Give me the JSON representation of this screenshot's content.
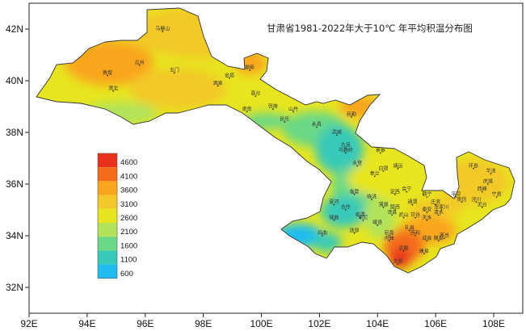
{
  "title": "甘肃省1981-2022年大于10℃ 年平均积温分布图",
  "axes": {
    "x_ticks": [
      "92E",
      "94E",
      "96E",
      "98E",
      "100E",
      "102E",
      "104E",
      "106E",
      "108E"
    ],
    "x_values": [
      92,
      94,
      96,
      98,
      100,
      102,
      104,
      106,
      108
    ],
    "y_ticks": [
      "42N",
      "40N",
      "38N",
      "36N",
      "34N",
      "32N"
    ],
    "y_values": [
      42,
      40,
      38,
      36,
      34,
      32
    ],
    "x_range": [
      92,
      109
    ],
    "y_range": [
      31,
      43
    ]
  },
  "legend": {
    "entries": [
      {
        "label": "4600",
        "color": "#e8321e"
      },
      {
        "label": "4100",
        "color": "#f46b1a"
      },
      {
        "label": "3600",
        "color": "#f9a61d"
      },
      {
        "label": "3100",
        "color": "#f2c928"
      },
      {
        "label": "2600",
        "color": "#e7e51f"
      },
      {
        "label": "2100",
        "color": "#b2e35b"
      },
      {
        "label": "1600",
        "color": "#6bd885"
      },
      {
        "label": "1100",
        "color": "#39c9b8"
      },
      {
        "label": "600",
        "color": "#1fbdf0"
      }
    ]
  },
  "places": [
    {
      "name": "马鬃山",
      "lon": 96.6,
      "lat": 41.9
    },
    {
      "name": "瓜州",
      "lon": 95.8,
      "lat": 40.6
    },
    {
      "name": "敦煌",
      "lon": 94.7,
      "lat": 40.2
    },
    {
      "name": "玉门",
      "lon": 97.0,
      "lat": 40.3
    },
    {
      "name": "肃北",
      "lon": 94.9,
      "lat": 39.6
    },
    {
      "name": "金塔",
      "lon": 98.9,
      "lat": 40.1
    },
    {
      "name": "酒泉",
      "lon": 98.5,
      "lat": 39.8
    },
    {
      "name": "鼎新",
      "lon": 99.6,
      "lat": 40.4
    },
    {
      "name": "高台",
      "lon": 99.8,
      "lat": 39.4
    },
    {
      "name": "肃南",
      "lon": 99.5,
      "lat": 38.8
    },
    {
      "name": "张掖",
      "lon": 100.4,
      "lat": 38.9
    },
    {
      "name": "山丹",
      "lon": 101.1,
      "lat": 38.8
    },
    {
      "name": "民乐",
      "lon": 100.8,
      "lat": 38.4
    },
    {
      "name": "民勤",
      "lon": 103.1,
      "lat": 38.6
    },
    {
      "name": "永昌",
      "lon": 101.9,
      "lat": 38.2
    },
    {
      "name": "武威",
      "lon": 102.6,
      "lat": 37.9
    },
    {
      "name": "古浪",
      "lon": 102.9,
      "lat": 37.4
    },
    {
      "name": "景泰",
      "lon": 104.1,
      "lat": 37.2
    },
    {
      "name": "乌鞘岭",
      "lon": 102.9,
      "lat": 37.2
    },
    {
      "name": "永登",
      "lon": 103.3,
      "lat": 36.7
    },
    {
      "name": "靖远",
      "lon": 104.7,
      "lat": 36.6
    },
    {
      "name": "白银",
      "lon": 104.2,
      "lat": 36.5
    },
    {
      "name": "皋兰",
      "lon": 103.9,
      "lat": 36.3
    },
    {
      "name": "环县",
      "lon": 107.3,
      "lat": 36.6
    },
    {
      "name": "华池",
      "lon": 107.9,
      "lat": 36.4
    },
    {
      "name": "庆城",
      "lon": 107.8,
      "lat": 36.0
    },
    {
      "name": "西峰",
      "lon": 107.6,
      "lat": 35.7
    },
    {
      "name": "宁县",
      "lon": 108.1,
      "lat": 35.5
    },
    {
      "name": "临洮",
      "lon": 103.8,
      "lat": 35.4
    },
    {
      "name": "定西",
      "lon": 104.6,
      "lat": 35.6
    },
    {
      "name": "会宁",
      "lon": 105.0,
      "lat": 35.7
    },
    {
      "name": "静宁",
      "lon": 105.7,
      "lat": 35.5
    },
    {
      "name": "庄浪",
      "lon": 106.0,
      "lat": 35.2
    },
    {
      "name": "平凉",
      "lon": 106.7,
      "lat": 35.5
    },
    {
      "name": "崇信",
      "lon": 106.9,
      "lat": 35.3
    },
    {
      "name": "泾川",
      "lon": 107.4,
      "lat": 35.3
    },
    {
      "name": "灵台",
      "lon": 107.6,
      "lat": 35.1
    },
    {
      "name": "临夏",
      "lon": 103.2,
      "lat": 35.6
    },
    {
      "name": "渭源",
      "lon": 104.2,
      "lat": 35.1
    },
    {
      "name": "陇西",
      "lon": 104.6,
      "lat": 35.0
    },
    {
      "name": "通渭",
      "lon": 105.2,
      "lat": 35.2
    },
    {
      "name": "秦安",
      "lon": 105.7,
      "lat": 34.9
    },
    {
      "name": "清水",
      "lon": 106.1,
      "lat": 34.8
    },
    {
      "name": "张家川",
      "lon": 106.2,
      "lat": 35.0
    },
    {
      "name": "甘谷",
      "lon": 105.3,
      "lat": 34.7
    },
    {
      "name": "武山",
      "lon": 104.9,
      "lat": 34.7
    },
    {
      "name": "天水",
      "lon": 105.7,
      "lat": 34.6
    },
    {
      "name": "漳县",
      "lon": 104.5,
      "lat": 34.8
    },
    {
      "name": "岷县",
      "lon": 104.0,
      "lat": 34.4
    },
    {
      "name": "礼县",
      "lon": 105.1,
      "lat": 34.2
    },
    {
      "name": "西和",
      "lon": 105.3,
      "lat": 34.0
    },
    {
      "name": "徽县",
      "lon": 106.1,
      "lat": 33.8
    },
    {
      "name": "两当",
      "lon": 106.3,
      "lat": 33.9
    },
    {
      "name": "成县",
      "lon": 105.7,
      "lat": 33.8
    },
    {
      "name": "康县",
      "lon": 105.6,
      "lat": 33.3
    },
    {
      "name": "宕昌",
      "lon": 104.4,
      "lat": 34.0
    },
    {
      "name": "舟曲",
      "lon": 104.4,
      "lat": 33.8
    },
    {
      "name": "武都",
      "lon": 104.9,
      "lat": 33.4
    },
    {
      "name": "文县",
      "lon": 104.7,
      "lat": 32.9
    },
    {
      "name": "迭部",
      "lon": 103.2,
      "lat": 34.1
    },
    {
      "name": "卓尼",
      "lon": 103.5,
      "lat": 34.6
    },
    {
      "name": "临潭",
      "lon": 103.4,
      "lat": 34.7
    },
    {
      "name": "合作",
      "lon": 102.9,
      "lat": 35.0
    },
    {
      "name": "夏河",
      "lon": 102.5,
      "lat": 35.2
    },
    {
      "name": "碌曲",
      "lon": 102.5,
      "lat": 34.6
    },
    {
      "name": "玛曲",
      "lon": 102.1,
      "lat": 34.0
    }
  ]
}
